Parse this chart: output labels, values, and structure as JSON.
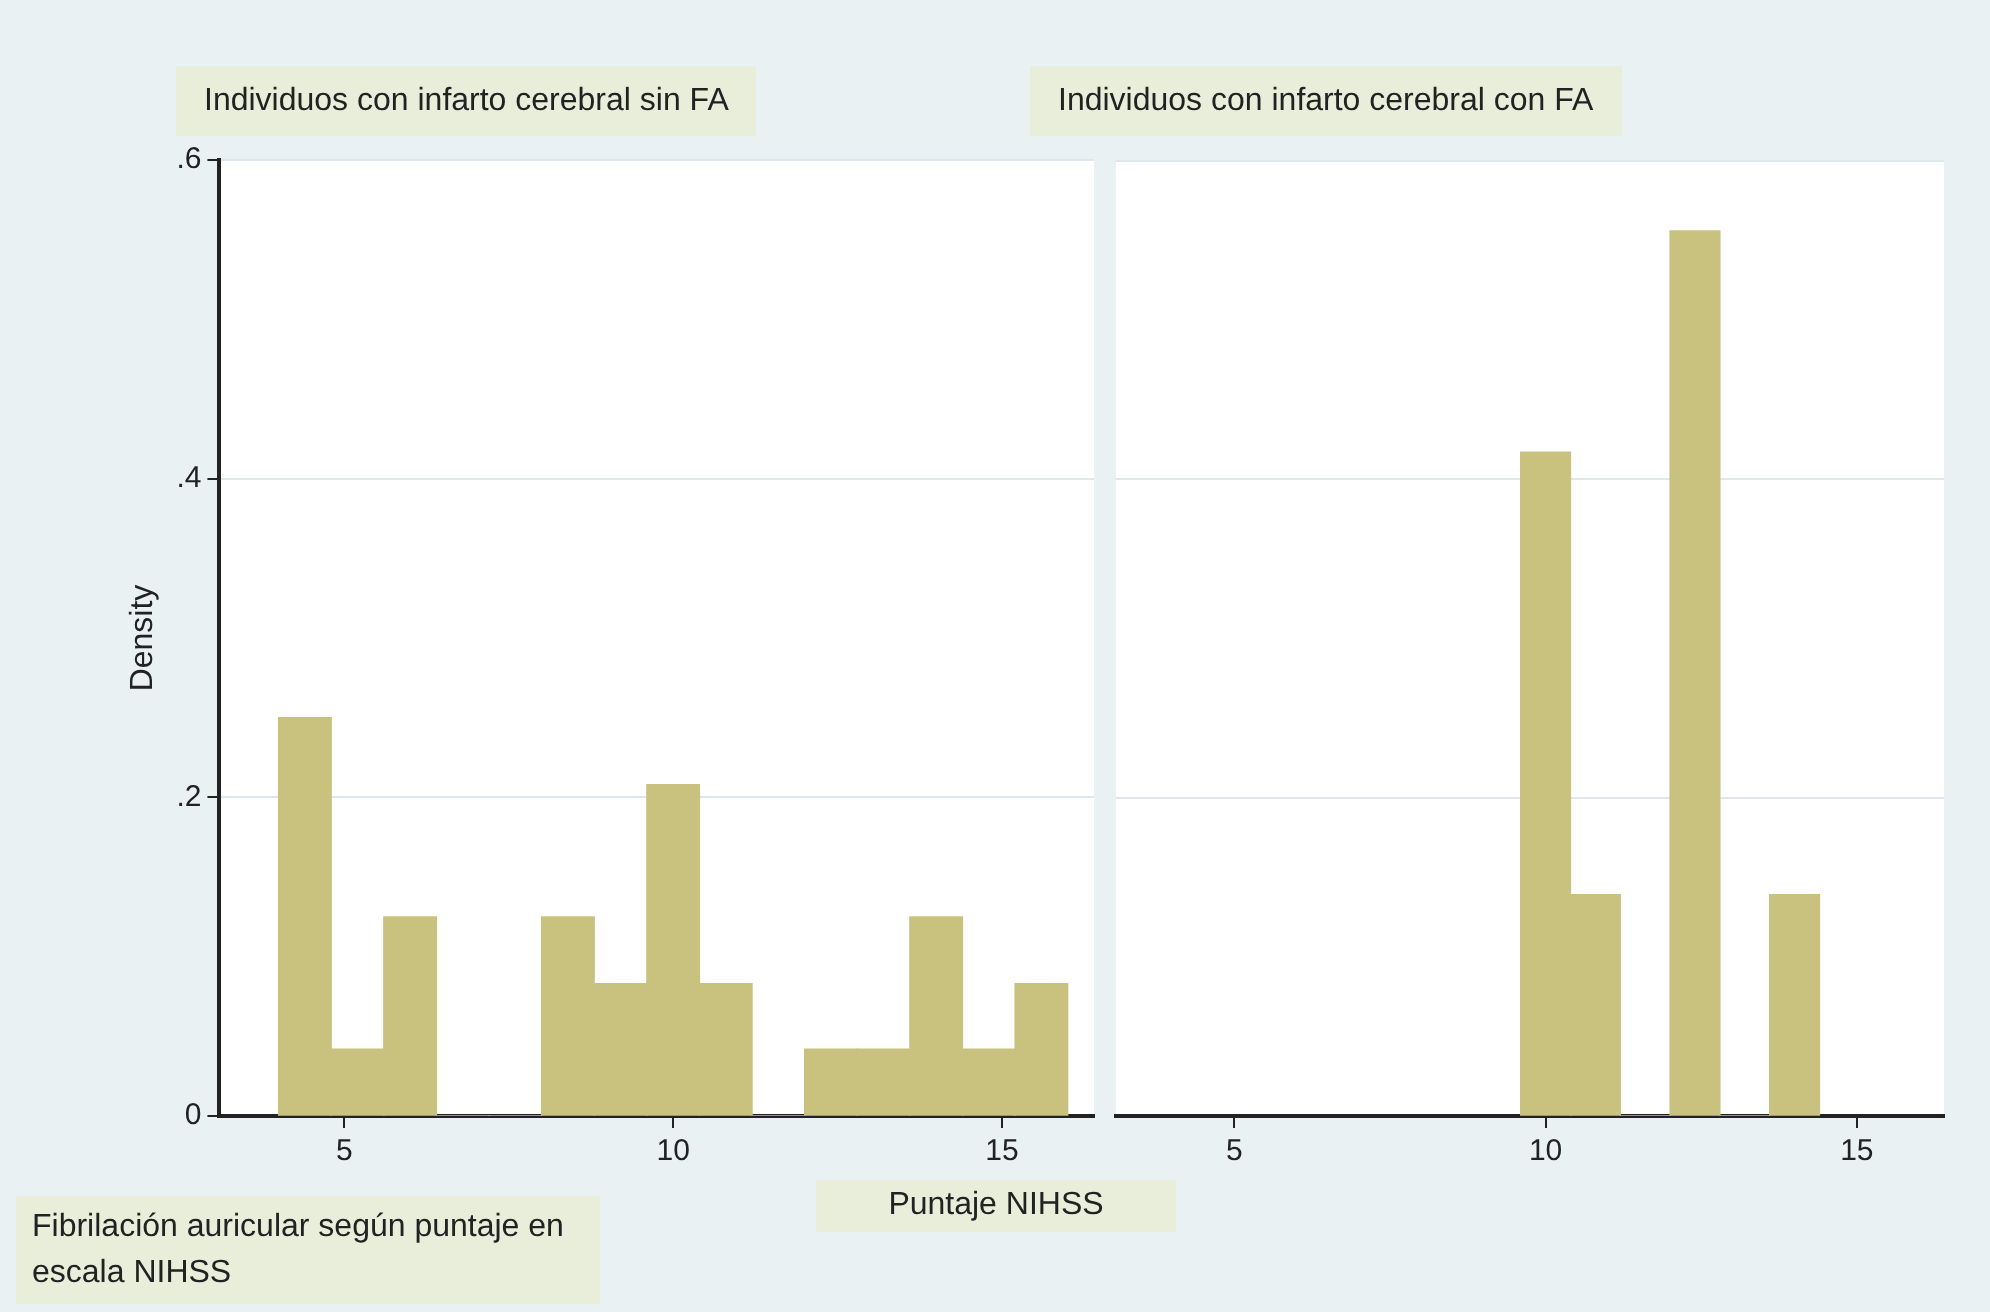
{
  "chart_data": [
    {
      "type": "histogram",
      "title": "Individuos con infarto cerebral sin FA",
      "xlabel": "Puntaje NIHSS",
      "ylabel": "Density",
      "annotations": [
        "Fibrilación auricular según puntaje en escala NIHSS"
      ],
      "bins": [
        4,
        4.8,
        5.6,
        6.4,
        7.2,
        8,
        8.8,
        9.6,
        10.4,
        11.2,
        12,
        12.8,
        13.6,
        14.4,
        15.2,
        16
      ],
      "values": [
        0.25,
        0.042,
        0.125,
        0,
        0,
        0.125,
        0.083,
        0.208,
        0.083,
        0,
        0.042,
        0.042,
        0.125,
        0.042,
        0.083
      ],
      "color": "#c9c27f",
      "xlim": [
        3.1,
        16.4
      ],
      "xticks": [
        5,
        10,
        15
      ],
      "ylim": [
        0,
        0.6
      ],
      "yticks": [
        {
          "value": 0,
          "label": "0"
        },
        {
          "value": 0.2,
          "label": ".2"
        },
        {
          "value": 0.4,
          "label": ".4"
        },
        {
          "value": 0.6,
          "label": ".6"
        }
      ],
      "grid": "y",
      "legend": false
    },
    {
      "type": "histogram",
      "title": "Individuos con infarto cerebral con FA",
      "bins": [
        9.6,
        10.4,
        11.2,
        12,
        12.8,
        13.6,
        14.4
      ],
      "values": [
        0.417,
        0.139,
        0,
        0.556,
        0,
        0.139
      ],
      "color": "#c9c27f",
      "xlim": [
        3.1,
        16.4
      ],
      "xticks": [
        5,
        10,
        15
      ],
      "ylim": [
        0,
        0.6
      ],
      "yticks": [
        {
          "value": 0,
          "label": null
        },
        {
          "value": 0.2,
          "label": null
        },
        {
          "value": 0.4,
          "label": null
        },
        {
          "value": 0.6,
          "label": null
        }
      ],
      "grid": "y",
      "legend": false,
      "tick_labels": "x"
    }
  ]
}
